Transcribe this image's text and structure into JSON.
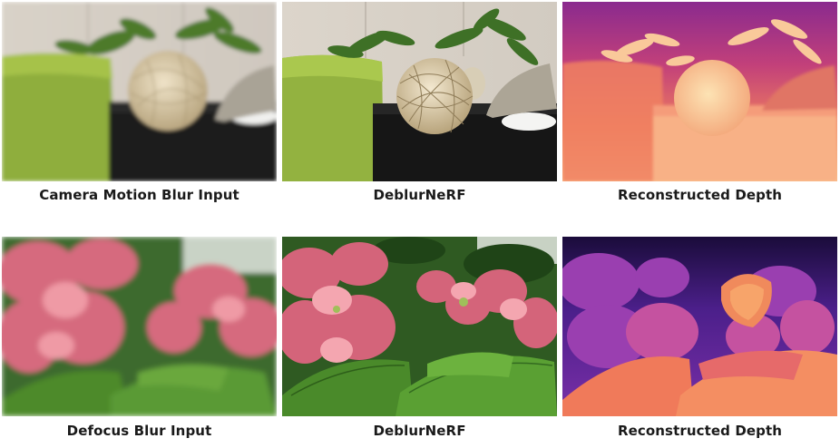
{
  "rows": [
    {
      "panels": [
        {
          "caption": "Camera Motion Blur Input"
        },
        {
          "caption": "DeblurNeRF"
        },
        {
          "caption": "Reconstructed Depth"
        }
      ]
    },
    {
      "panels": [
        {
          "caption": "Defocus Blur Input"
        },
        {
          "caption": "DeblurNeRF"
        },
        {
          "caption": "Reconstructed Depth"
        }
      ]
    }
  ]
}
